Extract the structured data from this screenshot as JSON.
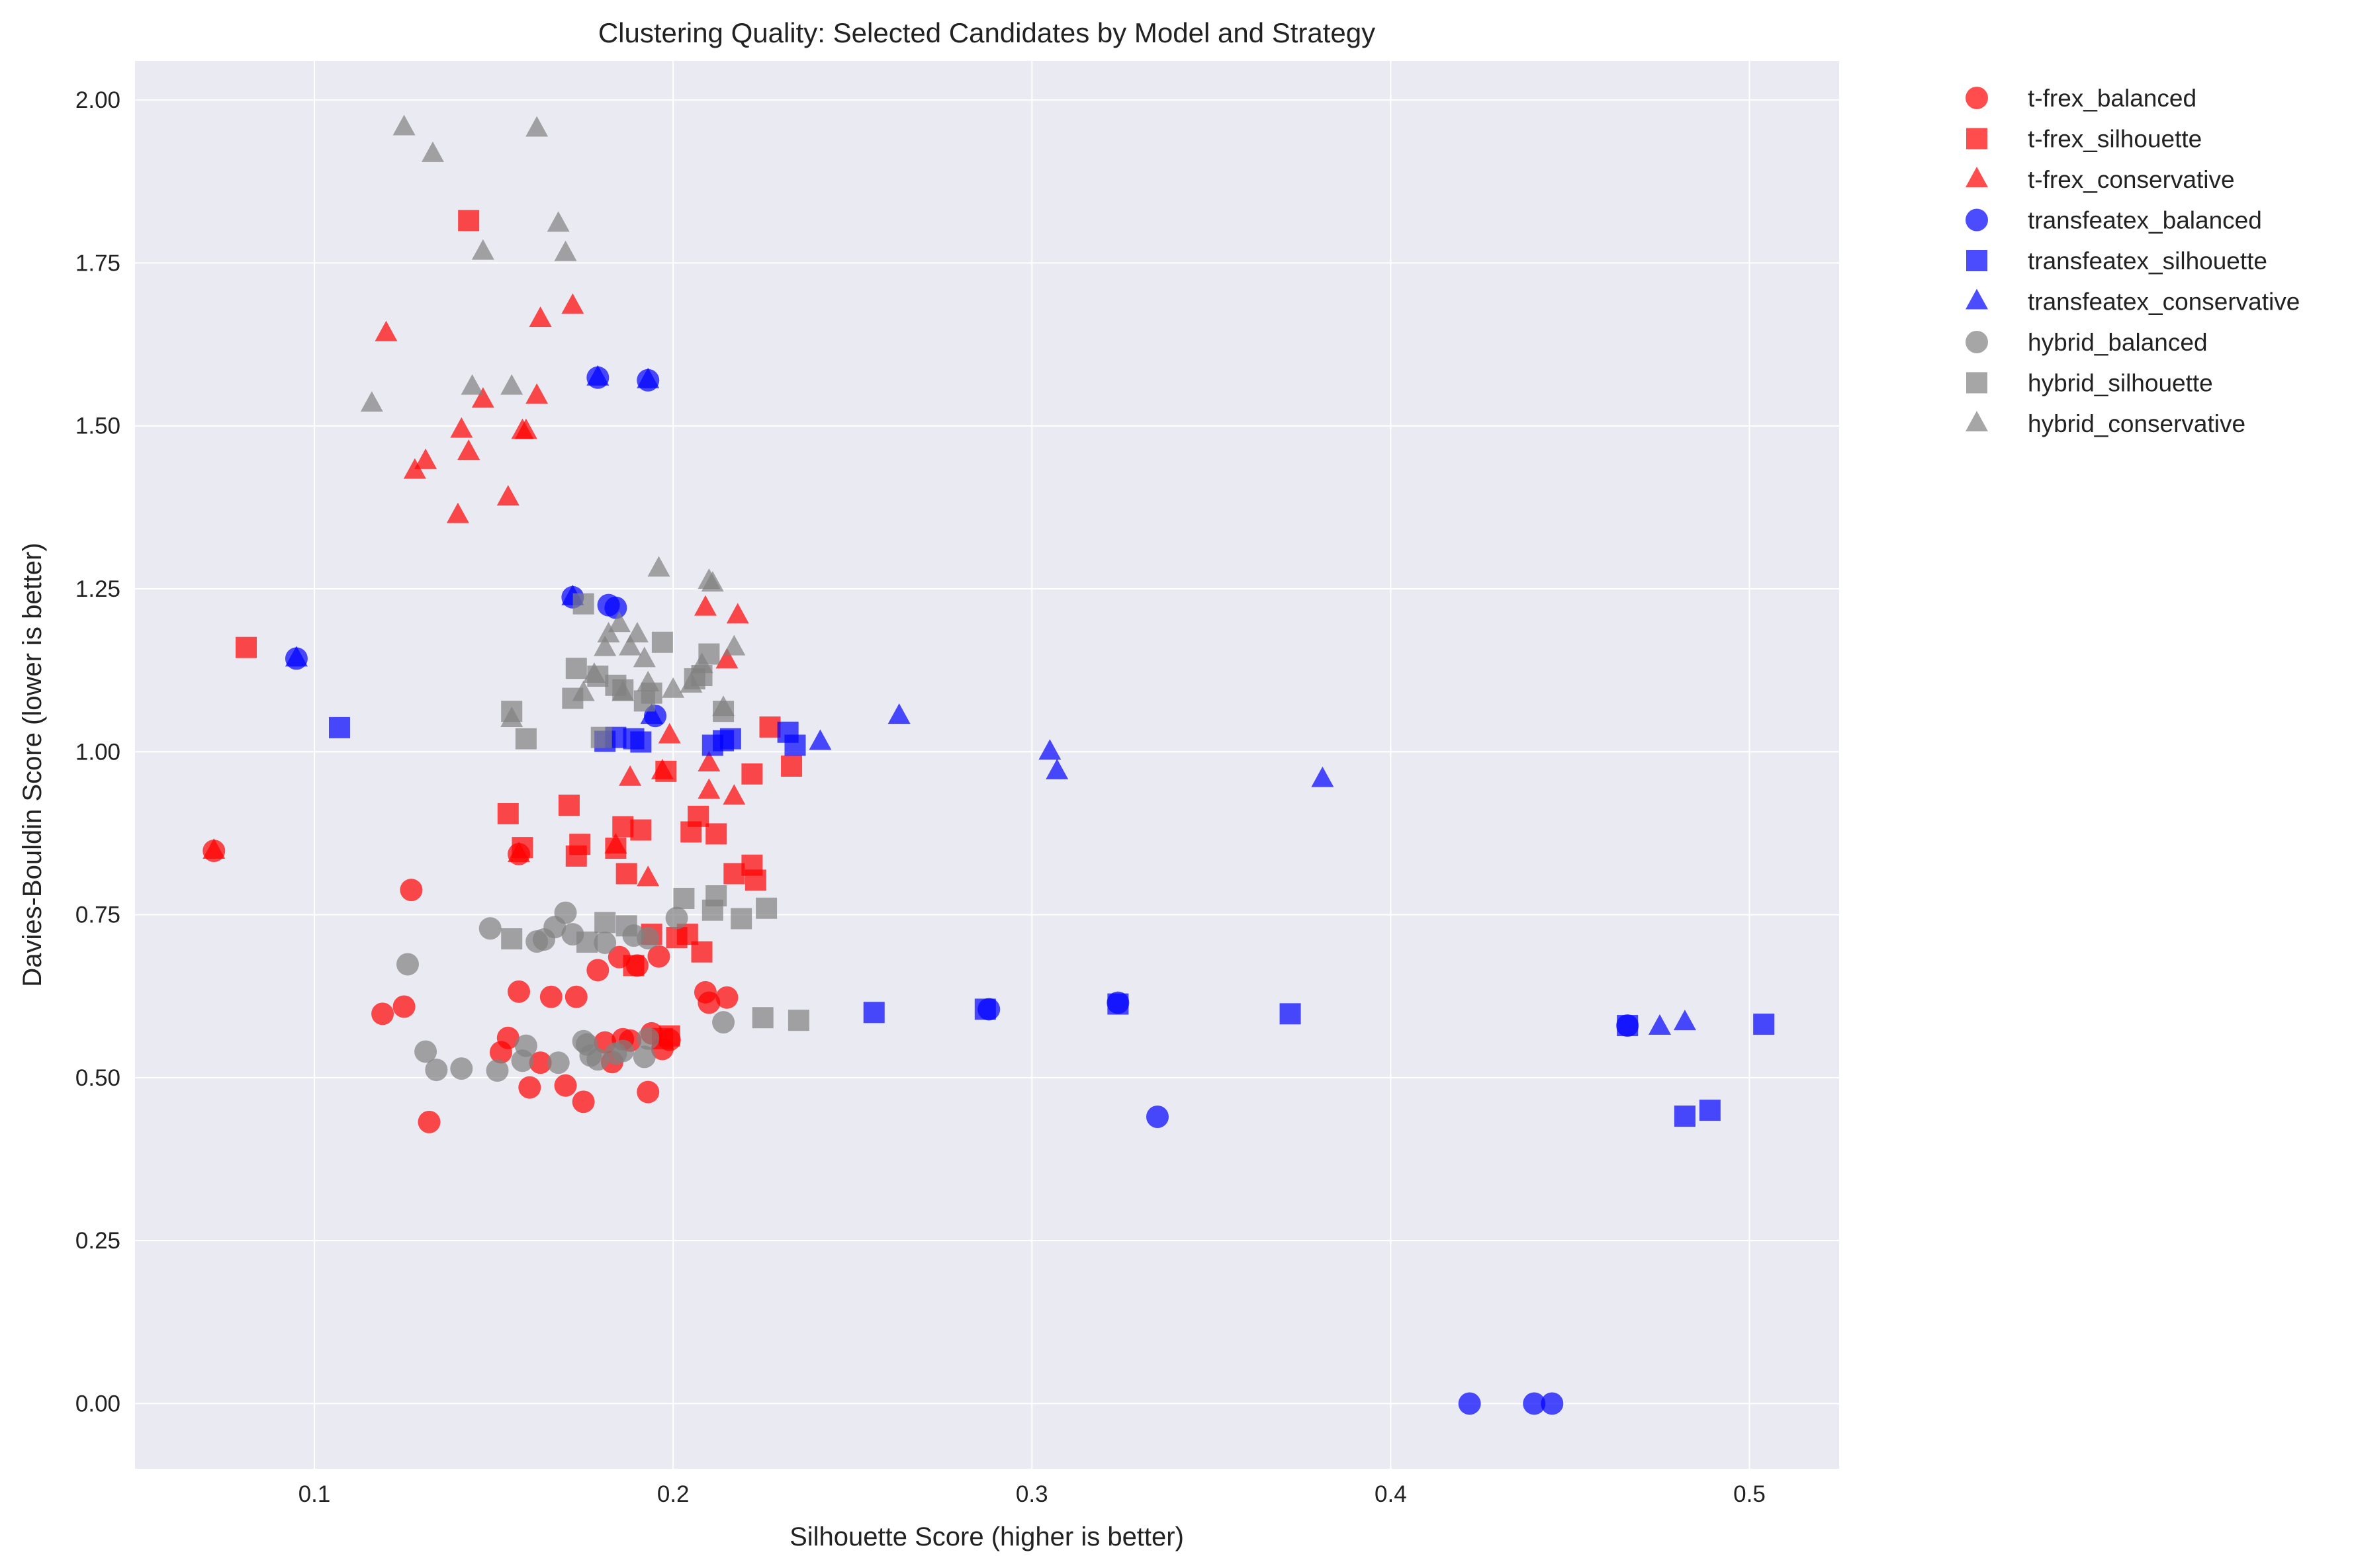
{
  "chart_data": {
    "type": "scatter",
    "title": "Clustering Quality: Selected Candidates by Model and Strategy",
    "xlabel": "Silhouette Score (higher is better)",
    "ylabel": "Davies-Bouldin Score (lower is better)",
    "xlim": [
      0.05,
      0.525
    ],
    "ylim": [
      -0.1,
      2.06
    ],
    "xticks": [
      0.1,
      0.2,
      0.3,
      0.4,
      0.5
    ],
    "xtick_labels": [
      "0.1",
      "0.2",
      "0.3",
      "0.4",
      "0.5"
    ],
    "yticks": [
      0.0,
      0.25,
      0.5,
      0.75,
      1.0,
      1.25,
      1.5,
      1.75,
      2.0
    ],
    "ytick_labels": [
      "0.00",
      "0.25",
      "0.50",
      "0.75",
      "1.00",
      "1.25",
      "1.50",
      "1.75",
      "2.00"
    ],
    "grid": true,
    "legend_position": "outside-right",
    "background": "#eaeaf2",
    "series": [
      {
        "name": "t-frex_balanced",
        "color": "#ff0000",
        "marker": "circle",
        "points": [
          [
            0.072,
            0.848
          ],
          [
            0.127,
            0.788
          ],
          [
            0.119,
            0.598
          ],
          [
            0.125,
            0.609
          ],
          [
            0.132,
            0.432
          ],
          [
            0.152,
            0.539
          ],
          [
            0.154,
            0.561
          ],
          [
            0.157,
            0.632
          ],
          [
            0.16,
            0.485
          ],
          [
            0.163,
            0.523
          ],
          [
            0.166,
            0.624
          ],
          [
            0.17,
            0.488
          ],
          [
            0.173,
            0.624
          ],
          [
            0.175,
            0.463
          ],
          [
            0.179,
            0.665
          ],
          [
            0.181,
            0.554
          ],
          [
            0.183,
            0.524
          ],
          [
            0.185,
            0.685
          ],
          [
            0.186,
            0.559
          ],
          [
            0.188,
            0.557
          ],
          [
            0.19,
            0.672
          ],
          [
            0.193,
            0.478
          ],
          [
            0.194,
            0.568
          ],
          [
            0.196,
            0.686
          ],
          [
            0.197,
            0.544
          ],
          [
            0.199,
            0.558
          ],
          [
            0.209,
            0.631
          ],
          [
            0.21,
            0.615
          ],
          [
            0.215,
            0.623
          ],
          [
            0.157,
            0.843
          ]
        ]
      },
      {
        "name": "t-frex_silhouette",
        "color": "#ff0000",
        "marker": "square",
        "points": [
          [
            0.143,
            1.815
          ],
          [
            0.081,
            1.16
          ],
          [
            0.154,
            0.905
          ],
          [
            0.158,
            0.853
          ],
          [
            0.171,
            0.918
          ],
          [
            0.173,
            0.84
          ],
          [
            0.174,
            0.858
          ],
          [
            0.184,
            0.852
          ],
          [
            0.186,
            0.885
          ],
          [
            0.187,
            0.813
          ],
          [
            0.189,
            0.672
          ],
          [
            0.191,
            0.88
          ],
          [
            0.194,
            0.72
          ],
          [
            0.197,
            0.56
          ],
          [
            0.199,
            0.564
          ],
          [
            0.201,
            0.715
          ],
          [
            0.204,
            0.72
          ],
          [
            0.205,
            0.877
          ],
          [
            0.207,
            0.901
          ],
          [
            0.208,
            0.693
          ],
          [
            0.212,
            0.874
          ],
          [
            0.217,
            0.813
          ],
          [
            0.222,
            0.966
          ],
          [
            0.222,
            0.826
          ],
          [
            0.223,
            0.803
          ],
          [
            0.227,
            1.038
          ],
          [
            0.233,
            0.978
          ],
          [
            0.198,
            0.97
          ]
        ]
      },
      {
        "name": "t-frex_conservative",
        "color": "#ff0000",
        "marker": "triangle",
        "points": [
          [
            0.072,
            0.848
          ],
          [
            0.12,
            1.642
          ],
          [
            0.128,
            1.431
          ],
          [
            0.131,
            1.446
          ],
          [
            0.14,
            1.363
          ],
          [
            0.141,
            1.494
          ],
          [
            0.143,
            1.46
          ],
          [
            0.147,
            1.54
          ],
          [
            0.154,
            1.39
          ],
          [
            0.158,
            1.492
          ],
          [
            0.159,
            1.492
          ],
          [
            0.162,
            1.546
          ],
          [
            0.163,
            1.664
          ],
          [
            0.172,
            1.684
          ],
          [
            0.157,
            0.843
          ],
          [
            0.184,
            0.856
          ],
          [
            0.188,
            0.96
          ],
          [
            0.193,
            0.806
          ],
          [
            0.197,
            0.97
          ],
          [
            0.199,
            1.025
          ],
          [
            0.209,
            1.221
          ],
          [
            0.21,
            0.94
          ],
          [
            0.21,
            0.982
          ],
          [
            0.215,
            1.14
          ],
          [
            0.217,
            0.931
          ],
          [
            0.218,
            1.209
          ]
        ]
      },
      {
        "name": "transfeatex_balanced",
        "color": "#0000ff",
        "marker": "circle",
        "points": [
          [
            0.095,
            1.143
          ],
          [
            0.179,
            1.574
          ],
          [
            0.193,
            1.57
          ],
          [
            0.172,
            1.237
          ],
          [
            0.182,
            1.225
          ],
          [
            0.184,
            1.221
          ],
          [
            0.195,
            1.055
          ],
          [
            0.288,
            0.605
          ],
          [
            0.324,
            0.615
          ],
          [
            0.335,
            0.44
          ],
          [
            0.422,
            0.0
          ],
          [
            0.44,
            0.0
          ],
          [
            0.445,
            0.0
          ],
          [
            0.466,
            0.58
          ]
        ]
      },
      {
        "name": "transfeatex_silhouette",
        "color": "#0000ff",
        "marker": "square",
        "points": [
          [
            0.107,
            1.037
          ],
          [
            0.181,
            1.016
          ],
          [
            0.184,
            1.022
          ],
          [
            0.189,
            1.02
          ],
          [
            0.191,
            1.015
          ],
          [
            0.211,
            1.01
          ],
          [
            0.214,
            1.017
          ],
          [
            0.216,
            1.02
          ],
          [
            0.232,
            1.03
          ],
          [
            0.234,
            1.01
          ],
          [
            0.256,
            0.6
          ],
          [
            0.287,
            0.605
          ],
          [
            0.324,
            0.613
          ],
          [
            0.372,
            0.598
          ],
          [
            0.466,
            0.58
          ],
          [
            0.482,
            0.441
          ],
          [
            0.489,
            0.45
          ],
          [
            0.504,
            0.582
          ]
        ]
      },
      {
        "name": "transfeatex_conservative",
        "color": "#0000ff",
        "marker": "triangle",
        "points": [
          [
            0.095,
            1.143
          ],
          [
            0.179,
            1.574
          ],
          [
            0.193,
            1.57
          ],
          [
            0.172,
            1.237
          ],
          [
            0.194,
            1.055
          ],
          [
            0.241,
            1.015
          ],
          [
            0.263,
            1.055
          ],
          [
            0.305,
            1.0
          ],
          [
            0.307,
            0.97
          ],
          [
            0.381,
            0.958
          ],
          [
            0.475,
            0.578
          ],
          [
            0.482,
            0.585
          ]
        ]
      },
      {
        "name": "hybrid_balanced",
        "color": "#808080",
        "marker": "circle",
        "points": [
          [
            0.126,
            0.674
          ],
          [
            0.131,
            0.54
          ],
          [
            0.134,
            0.512
          ],
          [
            0.141,
            0.514
          ],
          [
            0.149,
            0.729
          ],
          [
            0.151,
            0.511
          ],
          [
            0.158,
            0.526
          ],
          [
            0.159,
            0.549
          ],
          [
            0.162,
            0.709
          ],
          [
            0.164,
            0.712
          ],
          [
            0.167,
            0.731
          ],
          [
            0.168,
            0.523
          ],
          [
            0.17,
            0.753
          ],
          [
            0.172,
            0.72
          ],
          [
            0.175,
            0.556
          ],
          [
            0.176,
            0.551
          ],
          [
            0.177,
            0.534
          ],
          [
            0.179,
            0.528
          ],
          [
            0.181,
            0.707
          ],
          [
            0.184,
            0.537
          ],
          [
            0.186,
            0.541
          ],
          [
            0.189,
            0.718
          ],
          [
            0.192,
            0.532
          ],
          [
            0.193,
            0.714
          ],
          [
            0.193,
            0.56
          ],
          [
            0.201,
            0.745
          ],
          [
            0.214,
            0.585
          ]
        ]
      },
      {
        "name": "hybrid_silhouette",
        "color": "#808080",
        "marker": "square",
        "points": [
          [
            0.155,
            0.713
          ],
          [
            0.155,
            1.062
          ],
          [
            0.159,
            1.02
          ],
          [
            0.172,
            1.082
          ],
          [
            0.173,
            1.128
          ],
          [
            0.175,
            1.227
          ],
          [
            0.176,
            0.708
          ],
          [
            0.179,
            1.116
          ],
          [
            0.18,
            1.022
          ],
          [
            0.181,
            0.738
          ],
          [
            0.184,
            1.102
          ],
          [
            0.186,
            1.095
          ],
          [
            0.187,
            0.733
          ],
          [
            0.192,
            1.078
          ],
          [
            0.194,
            1.09
          ],
          [
            0.197,
            1.168
          ],
          [
            0.203,
            0.775
          ],
          [
            0.206,
            1.112
          ],
          [
            0.208,
            1.117
          ],
          [
            0.21,
            1.15
          ],
          [
            0.211,
            0.757
          ],
          [
            0.212,
            0.779
          ],
          [
            0.214,
            1.062
          ],
          [
            0.219,
            0.744
          ],
          [
            0.225,
            0.592
          ],
          [
            0.226,
            0.76
          ],
          [
            0.235,
            0.588
          ]
        ]
      },
      {
        "name": "hybrid_conservative",
        "color": "#808080",
        "marker": "triangle",
        "points": [
          [
            0.116,
            1.534
          ],
          [
            0.125,
            1.958
          ],
          [
            0.133,
            1.917
          ],
          [
            0.144,
            1.56
          ],
          [
            0.147,
            1.767
          ],
          [
            0.155,
            1.56
          ],
          [
            0.155,
            1.05
          ],
          [
            0.162,
            1.956
          ],
          [
            0.168,
            1.81
          ],
          [
            0.17,
            1.765
          ],
          [
            0.175,
            1.09
          ],
          [
            0.178,
            1.118
          ],
          [
            0.181,
            1.159
          ],
          [
            0.182,
            1.18
          ],
          [
            0.185,
            1.196
          ],
          [
            0.186,
            1.09
          ],
          [
            0.188,
            1.16
          ],
          [
            0.19,
            1.18
          ],
          [
            0.192,
            1.142
          ],
          [
            0.193,
            1.105
          ],
          [
            0.196,
            1.281
          ],
          [
            0.2,
            1.095
          ],
          [
            0.205,
            1.103
          ],
          [
            0.208,
            1.133
          ],
          [
            0.21,
            1.262
          ],
          [
            0.211,
            1.258
          ],
          [
            0.214,
            1.067
          ],
          [
            0.217,
            1.16
          ]
        ]
      }
    ]
  }
}
